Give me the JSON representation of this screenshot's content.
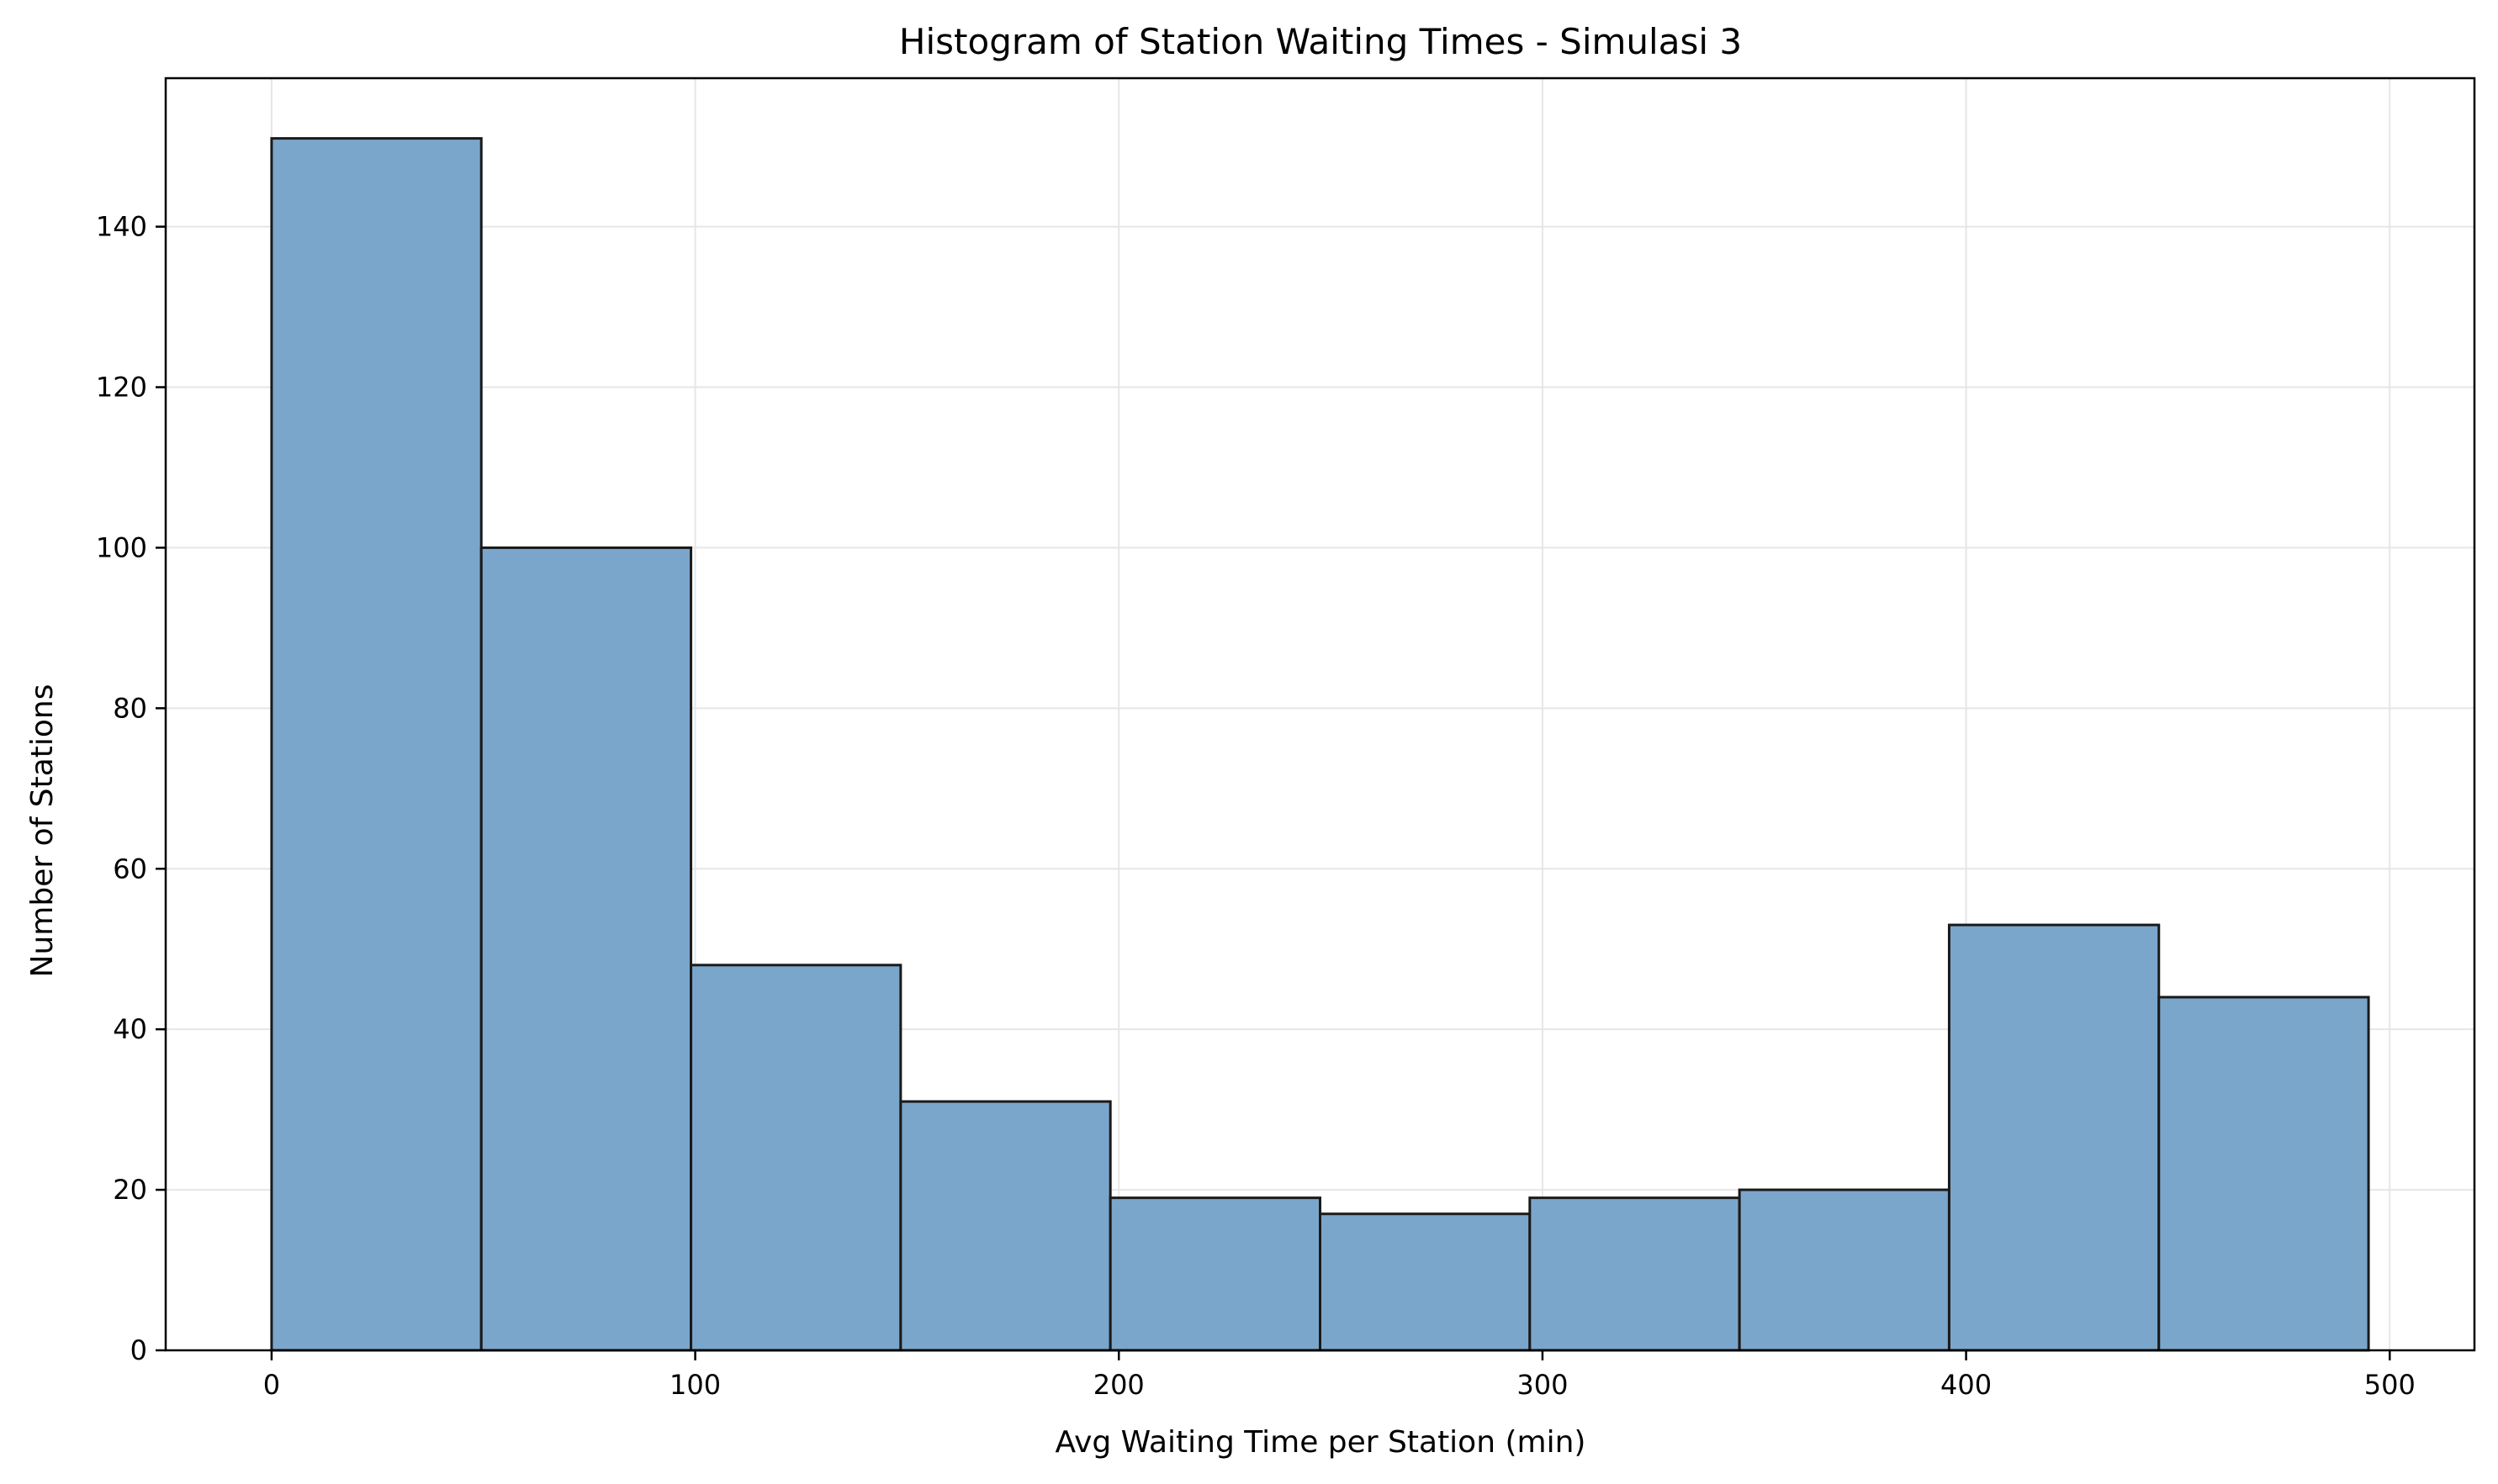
{
  "chart_data": {
    "type": "bar",
    "title": "Histogram of Station Waiting Times - Simulasi 3",
    "xlabel": "Avg Waiting Time per Station (min)",
    "ylabel": "Number of Stations",
    "bins": [
      {
        "x0": 0,
        "x1": 49.5,
        "count": 151
      },
      {
        "x0": 49.5,
        "x1": 99,
        "count": 100
      },
      {
        "x0": 99,
        "x1": 148.5,
        "count": 48
      },
      {
        "x0": 148.5,
        "x1": 198,
        "count": 31
      },
      {
        "x0": 198,
        "x1": 247.5,
        "count": 19
      },
      {
        "x0": 247.5,
        "x1": 297,
        "count": 17
      },
      {
        "x0": 297,
        "x1": 346.5,
        "count": 19
      },
      {
        "x0": 346.5,
        "x1": 396,
        "count": 20
      },
      {
        "x0": 396,
        "x1": 445.5,
        "count": 53
      },
      {
        "x0": 445.5,
        "x1": 495,
        "count": 44
      }
    ],
    "xlim": [
      -25,
      520
    ],
    "ylim": [
      0,
      158.5
    ],
    "xticks": [
      0,
      100,
      200,
      300,
      400,
      500
    ],
    "yticks": [
      0,
      20,
      40,
      60,
      80,
      100,
      120,
      140
    ],
    "grid": true,
    "colors": {
      "bar_fill": "#7ba6cb",
      "bar_edge": "#1a1a1a",
      "grid": "#e6e6e6",
      "axis": "#000000"
    }
  }
}
